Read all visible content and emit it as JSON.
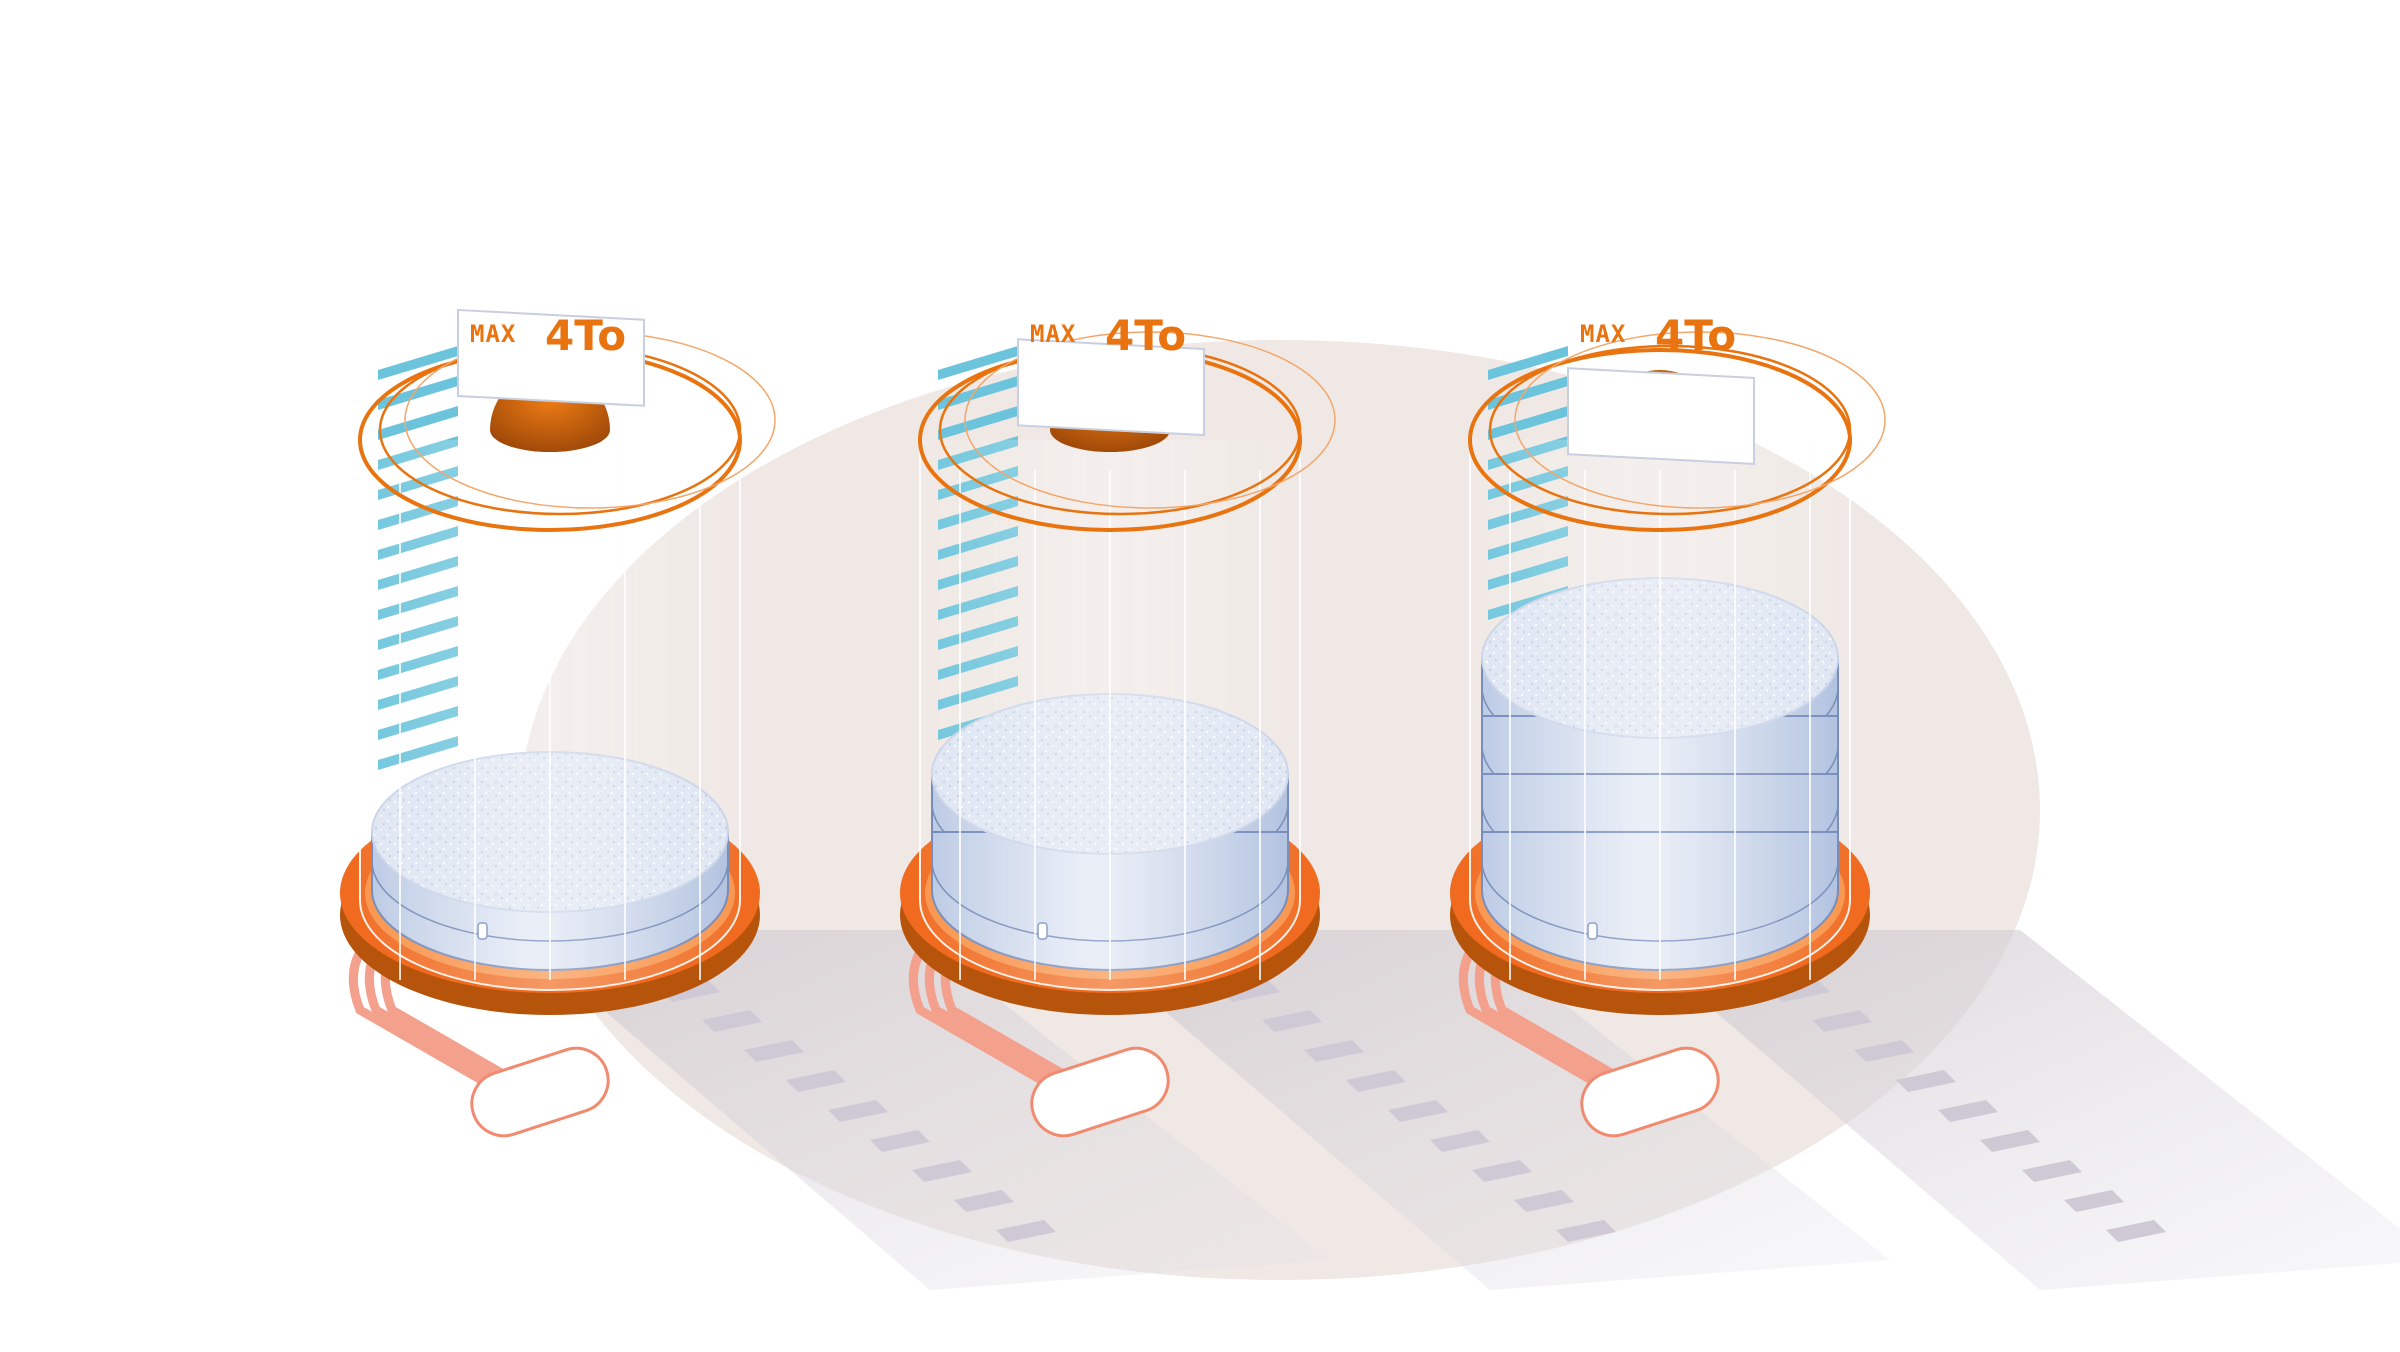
{
  "scene": {
    "colors": {
      "accent_orange": "#e8730f",
      "dark_orange": "#b7540b",
      "label_text": "#e8730f",
      "disk_top": "#e4eaf5",
      "disk_side": "#c9d5ea",
      "disk_line": "#6f86b8",
      "cyan_bar": "#6cc4dc",
      "cable": "#f3a08d",
      "backdrop": "#ede6e2",
      "shadow": "#dcd9de"
    },
    "units": [
      {
        "label_prefix": "MAX",
        "label_capacity": "4To",
        "stored_disks": 1
      },
      {
        "label_prefix": "MAX",
        "label_capacity": "4To",
        "stored_disks": 2
      },
      {
        "label_prefix": "MAX",
        "label_capacity": "4To",
        "stored_disks": 4
      }
    ]
  }
}
